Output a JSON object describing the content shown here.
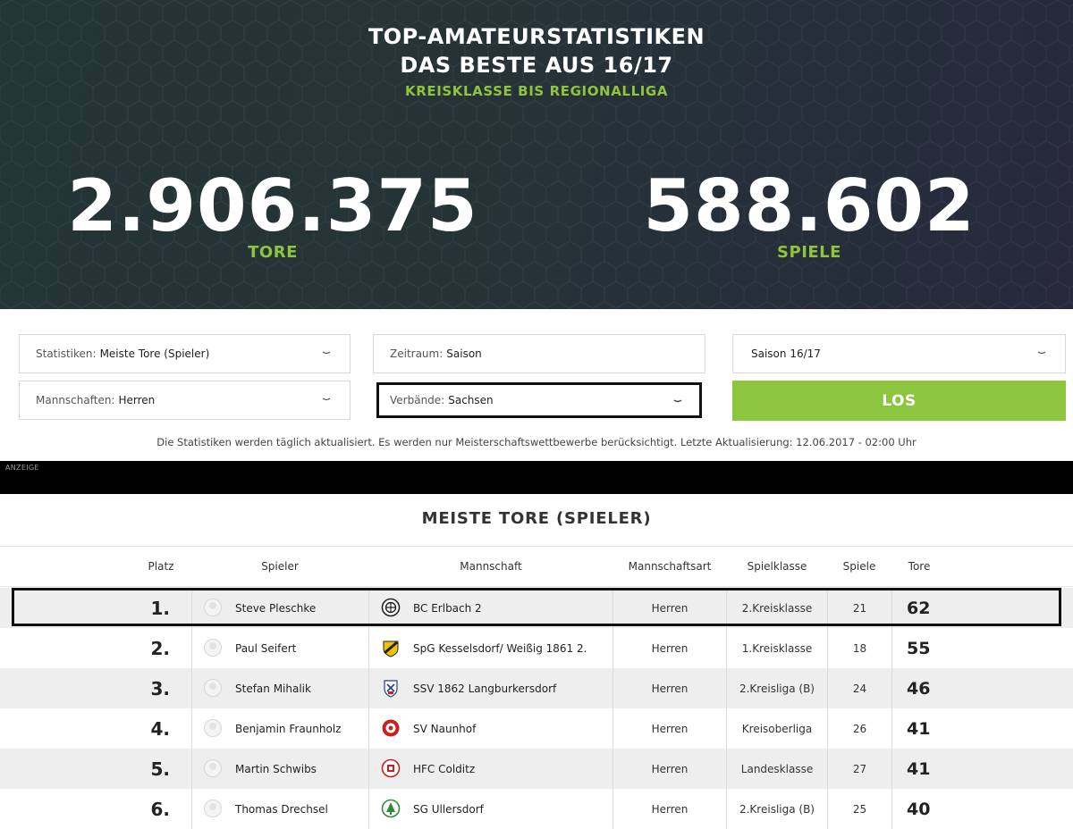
{
  "hero": {
    "title_line1": "TOP-AMATEURSTATISTIKEN",
    "title_line2": "DAS BESTE AUS 16/17",
    "subtitle": "KREISKLASSE BIS REGIONALLIGA",
    "stats": [
      {
        "value": "2.906.375",
        "label": "TORE"
      },
      {
        "value": "588.602",
        "label": "SPIELE"
      }
    ]
  },
  "filters": {
    "statistiken": {
      "key": "Statistiken:",
      "value": "Meiste Tore (Spieler)"
    },
    "zeitraum": {
      "key": "Zeitraum:",
      "value": "Saison"
    },
    "saison": {
      "value": "Saison 16/17"
    },
    "mannschaften": {
      "key": "Mannschaften:",
      "value": "Herren"
    },
    "verbaende": {
      "key": "Verbände:",
      "value": "Sachsen"
    },
    "submit_label": "LOS"
  },
  "info_text": "Die Statistiken werden täglich aktualisiert. Es werden nur Meisterschaftswettbewerbe berücksichtigt. Letzte Aktualisierung: 12.06.2017 - 02:00 Uhr",
  "ad_label": "ANZEIGE",
  "table": {
    "title": "MEISTE TORE (SPIELER)",
    "headers": {
      "platz": "Platz",
      "spieler": "Spieler",
      "mannschaft": "Mannschaft",
      "mannschaftsart": "Mannschaftsart",
      "spielklasse": "Spielklasse",
      "spiele": "Spiele",
      "tore": "Tore"
    },
    "rows": [
      {
        "rank": "1.",
        "player": "Steve Pleschke",
        "team": "BC Erlbach 2",
        "art": "Herren",
        "klasse": "2.Kreisklasse",
        "spiele": "21",
        "tore": "62"
      },
      {
        "rank": "2.",
        "player": "Paul Seifert",
        "team": "SpG Kesselsdorf/ Weißig 1861 2.",
        "art": "Herren",
        "klasse": "1.Kreisklasse",
        "spiele": "18",
        "tore": "55"
      },
      {
        "rank": "3.",
        "player": "Stefan Mihalik",
        "team": "SSV 1862 Langburkersdorf",
        "art": "Herren",
        "klasse": "2.Kreisliga (B)",
        "spiele": "24",
        "tore": "46"
      },
      {
        "rank": "4.",
        "player": "Benjamin Fraunholz",
        "team": "SV Naunhof",
        "art": "Herren",
        "klasse": "Kreisoberliga",
        "spiele": "26",
        "tore": "41"
      },
      {
        "rank": "5.",
        "player": "Martin Schwibs",
        "team": "HFC Colditz",
        "art": "Herren",
        "klasse": "Landesklasse",
        "spiele": "27",
        "tore": "41"
      },
      {
        "rank": "6.",
        "player": "Thomas Drechsel",
        "team": "SG Ullersdorf",
        "art": "Herren",
        "klasse": "2.Kreisliga (B)",
        "spiele": "25",
        "tore": "40"
      }
    ]
  }
}
